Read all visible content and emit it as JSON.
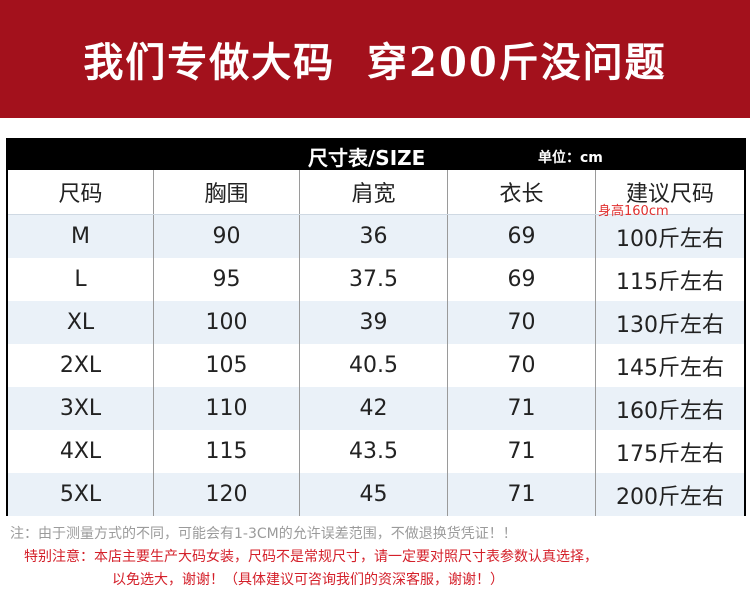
{
  "banner": {
    "title": "我们专做大码  穿200斤没问题",
    "color": "#a3111c"
  },
  "table": {
    "title": "尺寸表/SIZE",
    "unit": "单位：cm",
    "headers": [
      "尺码",
      "胸围",
      "肩宽",
      "衣长",
      "建议尺码"
    ],
    "header_note": "身高160cm",
    "rows": [
      [
        "M",
        "90",
        "36",
        "69",
        "100斤左右"
      ],
      [
        "L",
        "95",
        "37.5",
        "69",
        "115斤左右"
      ],
      [
        "XL",
        "100",
        "39",
        "70",
        "130斤左右"
      ],
      [
        "2XL",
        "105",
        "40.5",
        "70",
        "145斤左右"
      ],
      [
        "3XL",
        "110",
        "42",
        "71",
        "160斤左右"
      ],
      [
        "4XL",
        "115",
        "43.5",
        "71",
        "175斤左右"
      ],
      [
        "5XL",
        "120",
        "45",
        "71",
        "200斤左右"
      ]
    ],
    "alt_row_color": "#eaf1f8"
  },
  "notes": {
    "line1": "注：由于测量方式的不同，可能会有1-3CM的允许误差范围，不做退换货凭证！！",
    "line2": "特别注意：本店主要生产大码女装，尺码不是常规尺寸，请一定要对照尺寸表参数认真选择，",
    "line3": "以免选大，谢谢！（具体建议可咨询我们的资深客服，谢谢！）"
  }
}
